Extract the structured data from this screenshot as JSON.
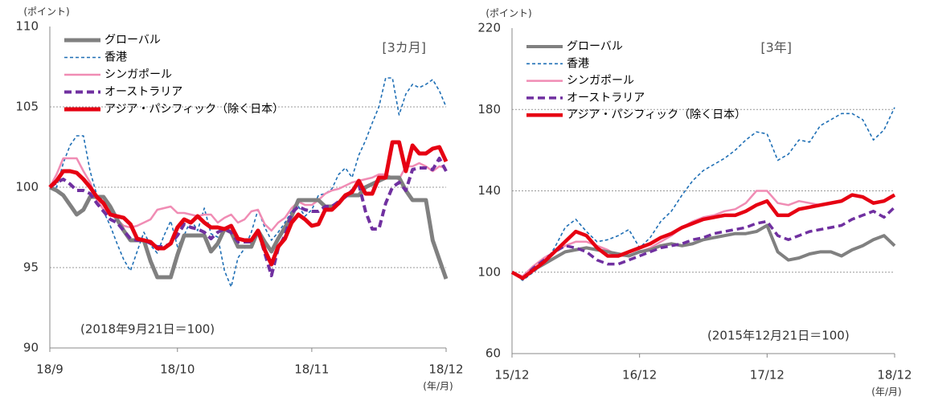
{
  "chart_data": [
    {
      "type": "line",
      "y_axis_label": "(ポイント)",
      "x_axis_label": "(年/月)",
      "period": "[3カ月]",
      "note": "(2018年9月21日＝100)",
      "categories": [
        "18/9",
        null,
        null,
        null,
        null,
        null,
        null,
        null,
        null,
        null,
        null,
        null,
        null,
        null,
        null,
        null,
        null,
        null,
        null,
        "18/10",
        null,
        null,
        null,
        null,
        null,
        null,
        null,
        null,
        null,
        null,
        null,
        null,
        null,
        null,
        null,
        null,
        null,
        null,
        null,
        "18/11",
        null,
        null,
        null,
        null,
        null,
        null,
        null,
        null,
        null,
        null,
        null,
        null,
        null,
        null,
        null,
        null,
        null,
        null,
        null,
        "18/12"
      ],
      "ylim": [
        90,
        110
      ],
      "yticks": [
        90,
        95,
        100,
        105,
        110
      ],
      "grid": true,
      "series": [
        {
          "name": "グローバル",
          "color": "#808080",
          "width": 5,
          "style": "solid",
          "values": [
            100,
            99.8,
            99.5,
            98.9,
            98.3,
            98.6,
            99.4,
            99.4,
            99.4,
            98.8,
            98,
            97.3,
            96.7,
            96.7,
            96.7,
            95.4,
            94.4,
            94.4,
            94.4,
            95.8,
            97,
            97,
            97,
            97,
            96,
            96.5,
            97.4,
            97.2,
            96.3,
            96.3,
            96.3,
            97.3,
            96.6,
            96,
            96.8,
            97.5,
            98.2,
            99.2,
            99.2,
            99.2,
            99.2,
            98.8,
            98.8,
            99,
            99.5,
            99.5,
            99.5,
            100,
            100.2,
            100.4,
            100.6,
            100.6,
            100.6,
            99.8,
            99.2,
            99.2,
            99.2,
            96.7,
            95.5,
            94.3
          ]
        },
        {
          "name": "香港",
          "color": "#1f6fb5",
          "width": 1.6,
          "style": "dashed",
          "values": [
            100,
            100,
            101.5,
            102.6,
            103.2,
            103.2,
            101,
            99.5,
            98.5,
            97.6,
            96.5,
            95.5,
            94.8,
            96,
            97.2,
            96.4,
            95.9,
            97,
            97.9,
            96.3,
            97,
            98,
            97.3,
            98.7,
            97.1,
            96.9,
            94.8,
            93.8,
            95.6,
            96.2,
            97.2,
            98.6,
            97.5,
            96.7,
            97.2,
            97.8,
            98.5,
            98.8,
            98.2,
            98.6,
            99.5,
            99.6,
            99.9,
            100.8,
            101.2,
            100.6,
            102,
            102.9,
            104,
            105,
            106.8,
            106.8,
            104.5,
            105.8,
            106.4,
            106.2,
            106.4,
            106.7,
            106,
            105
          ]
        },
        {
          "name": "シンガポール",
          "color": "#f08cb4",
          "width": 2.5,
          "style": "solid",
          "values": [
            100,
            100.8,
            101.8,
            101.8,
            101.8,
            101,
            100.3,
            99.2,
            98.6,
            98.3,
            98,
            97.6,
            97.5,
            97.6,
            97.8,
            98,
            98.6,
            98.7,
            98.8,
            98.4,
            98.4,
            98.3,
            98.2,
            98.3,
            98.3,
            97.8,
            98.1,
            98.3,
            97.8,
            98,
            98.5,
            98.6,
            97.7,
            97.3,
            97.8,
            98.1,
            98.7,
            99.1,
            98.9,
            98.9,
            99.2,
            99.6,
            99.8,
            99.9,
            100.1,
            100.3,
            100.4,
            100.5,
            100.6,
            100.8,
            100.8,
            100.6,
            100.5,
            101.3,
            101.3,
            101.5,
            101.3,
            101,
            101.3,
            101.2
          ]
        },
        {
          "name": "オーストラリア",
          "color": "#7030a0",
          "width": 4,
          "style": "dashed",
          "values": [
            100,
            100.3,
            100.5,
            100.2,
            99.8,
            99.8,
            99.6,
            99,
            98.5,
            98,
            97.8,
            97.3,
            96.8,
            96.7,
            96.7,
            96.5,
            96.3,
            96.3,
            96.5,
            97,
            97.7,
            97.5,
            97.4,
            97.2,
            96.8,
            97.2,
            97.4,
            97.2,
            96.6,
            96.6,
            96.6,
            97.3,
            95.9,
            94.5,
            96.2,
            97,
            98.4,
            98.8,
            98.6,
            98.5,
            98.5,
            98.8,
            98.8,
            99.1,
            99.4,
            99.8,
            100.2,
            98.5,
            97.4,
            97.4,
            99,
            100,
            100.3,
            99.8,
            101.1,
            101.2,
            101.2,
            101.1,
            101.8,
            101
          ]
        },
        {
          "name": "アジア・パシフィック（除く日本）",
          "color": "#e60012",
          "width": 5,
          "style": "solid",
          "values": [
            100,
            100.4,
            101,
            101,
            100.9,
            100.5,
            100,
            99.4,
            99,
            98.3,
            98.2,
            98.1,
            97.7,
            96.8,
            96.7,
            96.6,
            96.2,
            96.2,
            96.5,
            97.5,
            98,
            97.8,
            98.2,
            97.8,
            97.5,
            97.5,
            97.4,
            97.6,
            96.8,
            96.7,
            96.7,
            97.3,
            96.1,
            95.2,
            96.3,
            96.8,
            97.8,
            98.3,
            98,
            97.6,
            97.7,
            98.6,
            98.6,
            99,
            99.5,
            99.7,
            100.4,
            99.6,
            99.6,
            100.6,
            100.6,
            102.8,
            102.8,
            101,
            102.6,
            102.1,
            102.1,
            102.4,
            102.5,
            101.6
          ]
        }
      ]
    },
    {
      "type": "line",
      "y_axis_label": "(ポイント)",
      "x_axis_label": "(年/月)",
      "period": "[3年]",
      "note": "(2015年12月21日＝100)",
      "categories": [
        "15/12",
        null,
        null,
        null,
        null,
        null,
        null,
        null,
        null,
        null,
        null,
        null,
        "16/12",
        null,
        null,
        null,
        null,
        null,
        null,
        null,
        null,
        null,
        null,
        null,
        "17/12",
        null,
        null,
        null,
        null,
        null,
        null,
        null,
        null,
        null,
        null,
        null,
        "18/12"
      ],
      "ylim": [
        60,
        220
      ],
      "yticks": [
        60,
        100,
        140,
        180,
        220
      ],
      "grid": true,
      "series": [
        {
          "name": "グローバル",
          "color": "#808080",
          "width": 4,
          "style": "solid",
          "values": [
            100,
            97,
            101,
            104,
            107,
            110,
            111,
            112,
            111,
            110,
            109,
            108,
            110,
            111,
            113,
            114,
            113,
            114,
            116,
            117,
            118,
            119,
            119,
            120,
            123,
            110,
            106,
            107,
            109,
            110,
            110,
            108,
            111,
            113,
            116,
            118,
            113
          ]
        },
        {
          "name": "香港",
          "color": "#1f6fb5",
          "width": 1.6,
          "style": "dashed",
          "values": [
            100,
            96,
            100,
            104,
            112,
            122,
            126,
            120,
            115,
            116,
            118,
            121,
            112,
            117,
            125,
            130,
            138,
            145,
            150,
            153,
            156,
            160,
            165,
            169,
            168,
            155,
            158,
            165,
            164,
            172,
            175,
            178,
            178,
            175,
            165,
            170,
            181
          ]
        },
        {
          "name": "シンガポール",
          "color": "#f08cb4",
          "width": 2.5,
          "style": "solid",
          "values": [
            100,
            98,
            103,
            107,
            110,
            113,
            115,
            115,
            113,
            111,
            108,
            108,
            110,
            112,
            115,
            118,
            122,
            125,
            127,
            128,
            130,
            131,
            134,
            140,
            140,
            134,
            133,
            135,
            134,
            133,
            null,
            null,
            null,
            null,
            null,
            null,
            null
          ]
        },
        {
          "name": "オーストラリア",
          "color": "#7030a0",
          "width": 3.5,
          "style": "dashed",
          "values": [
            100,
            97,
            102,
            106,
            110,
            113,
            112,
            110,
            106,
            104,
            104,
            106,
            108,
            110,
            112,
            113,
            114,
            116,
            117,
            119,
            120,
            121,
            122,
            124,
            125,
            118,
            116,
            118,
            120,
            121,
            122,
            123,
            126,
            128,
            130,
            127,
            132
          ]
        },
        {
          "name": "アジア・パシフィック（除く日本）",
          "color": "#e60012",
          "width": 4.5,
          "style": "solid",
          "values": [
            100,
            97,
            101,
            105,
            110,
            115,
            120,
            118,
            112,
            108,
            108,
            110,
            112,
            114,
            117,
            119,
            122,
            124,
            126,
            127,
            128,
            128,
            130,
            133,
            135,
            128,
            128,
            131,
            132,
            133,
            134,
            135,
            138,
            137,
            134,
            135,
            138
          ]
        }
      ]
    }
  ]
}
